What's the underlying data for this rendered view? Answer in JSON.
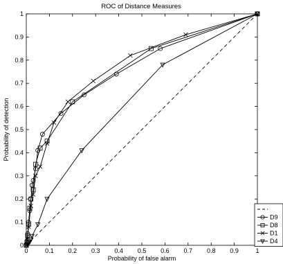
{
  "chart_data": {
    "type": "line",
    "title": "ROC of Distance Measures",
    "xlabel": "Probability of false alarm",
    "ylabel": "Probability of detection",
    "xlim": [
      0,
      1
    ],
    "ylim": [
      0,
      1
    ],
    "xticks": [
      "0",
      "0.1",
      "0.2",
      "0.3",
      "0.4",
      "0.5",
      "0.6",
      "0.7",
      "0.8",
      "0.9",
      "1"
    ],
    "yticks": [
      "0",
      "0.1",
      "0.2",
      "0.3",
      "0.4",
      "0.5",
      "0.6",
      "0.7",
      "0.8",
      "0.9",
      "1"
    ],
    "grid": false,
    "legend_position": "bottom-right, outside plot",
    "series": [
      {
        "name": "",
        "style": "dashed",
        "marker": "none",
        "x": [
          0,
          1
        ],
        "y": [
          0,
          1
        ]
      },
      {
        "name": "D9",
        "style": "solid",
        "marker": "circle",
        "x": [
          0,
          0.003,
          0.006,
          0.01,
          0.015,
          0.02,
          0.025,
          0.03,
          0.04,
          0.05,
          0.07,
          0.15,
          0.25,
          0.39,
          0.58,
          1
        ],
        "y": [
          0,
          0.02,
          0.05,
          0.1,
          0.15,
          0.2,
          0.26,
          0.28,
          0.33,
          0.41,
          0.48,
          0.57,
          0.65,
          0.74,
          0.85,
          1
        ]
      },
      {
        "name": "D8",
        "style": "solid",
        "marker": "square",
        "x": [
          0,
          0.003,
          0.006,
          0.01,
          0.015,
          0.02,
          0.03,
          0.04,
          0.06,
          0.09,
          0.2,
          0.54,
          1
        ],
        "y": [
          0,
          0.01,
          0.04,
          0.09,
          0.16,
          0.2,
          0.24,
          0.35,
          0.42,
          0.45,
          0.62,
          0.85,
          1
        ]
      },
      {
        "name": "D1",
        "style": "solid",
        "marker": "x",
        "x": [
          0,
          0.005,
          0.01,
          0.02,
          0.03,
          0.04,
          0.06,
          0.09,
          0.12,
          0.18,
          0.29,
          0.45,
          0.69,
          1
        ],
        "y": [
          0,
          0.03,
          0.08,
          0.17,
          0.22,
          0.3,
          0.34,
          0.44,
          0.53,
          0.62,
          0.71,
          0.82,
          0.91,
          1
        ]
      },
      {
        "name": "D4",
        "style": "solid",
        "marker": "triangle-down",
        "x": [
          0,
          0.005,
          0.01,
          0.015,
          0.02,
          0.025,
          0.05,
          0.09,
          0.24,
          0.59,
          1
        ],
        "y": [
          0,
          0.005,
          0.01,
          0.015,
          0.025,
          0.04,
          0.09,
          0.2,
          0.41,
          0.78,
          1
        ]
      }
    ]
  }
}
